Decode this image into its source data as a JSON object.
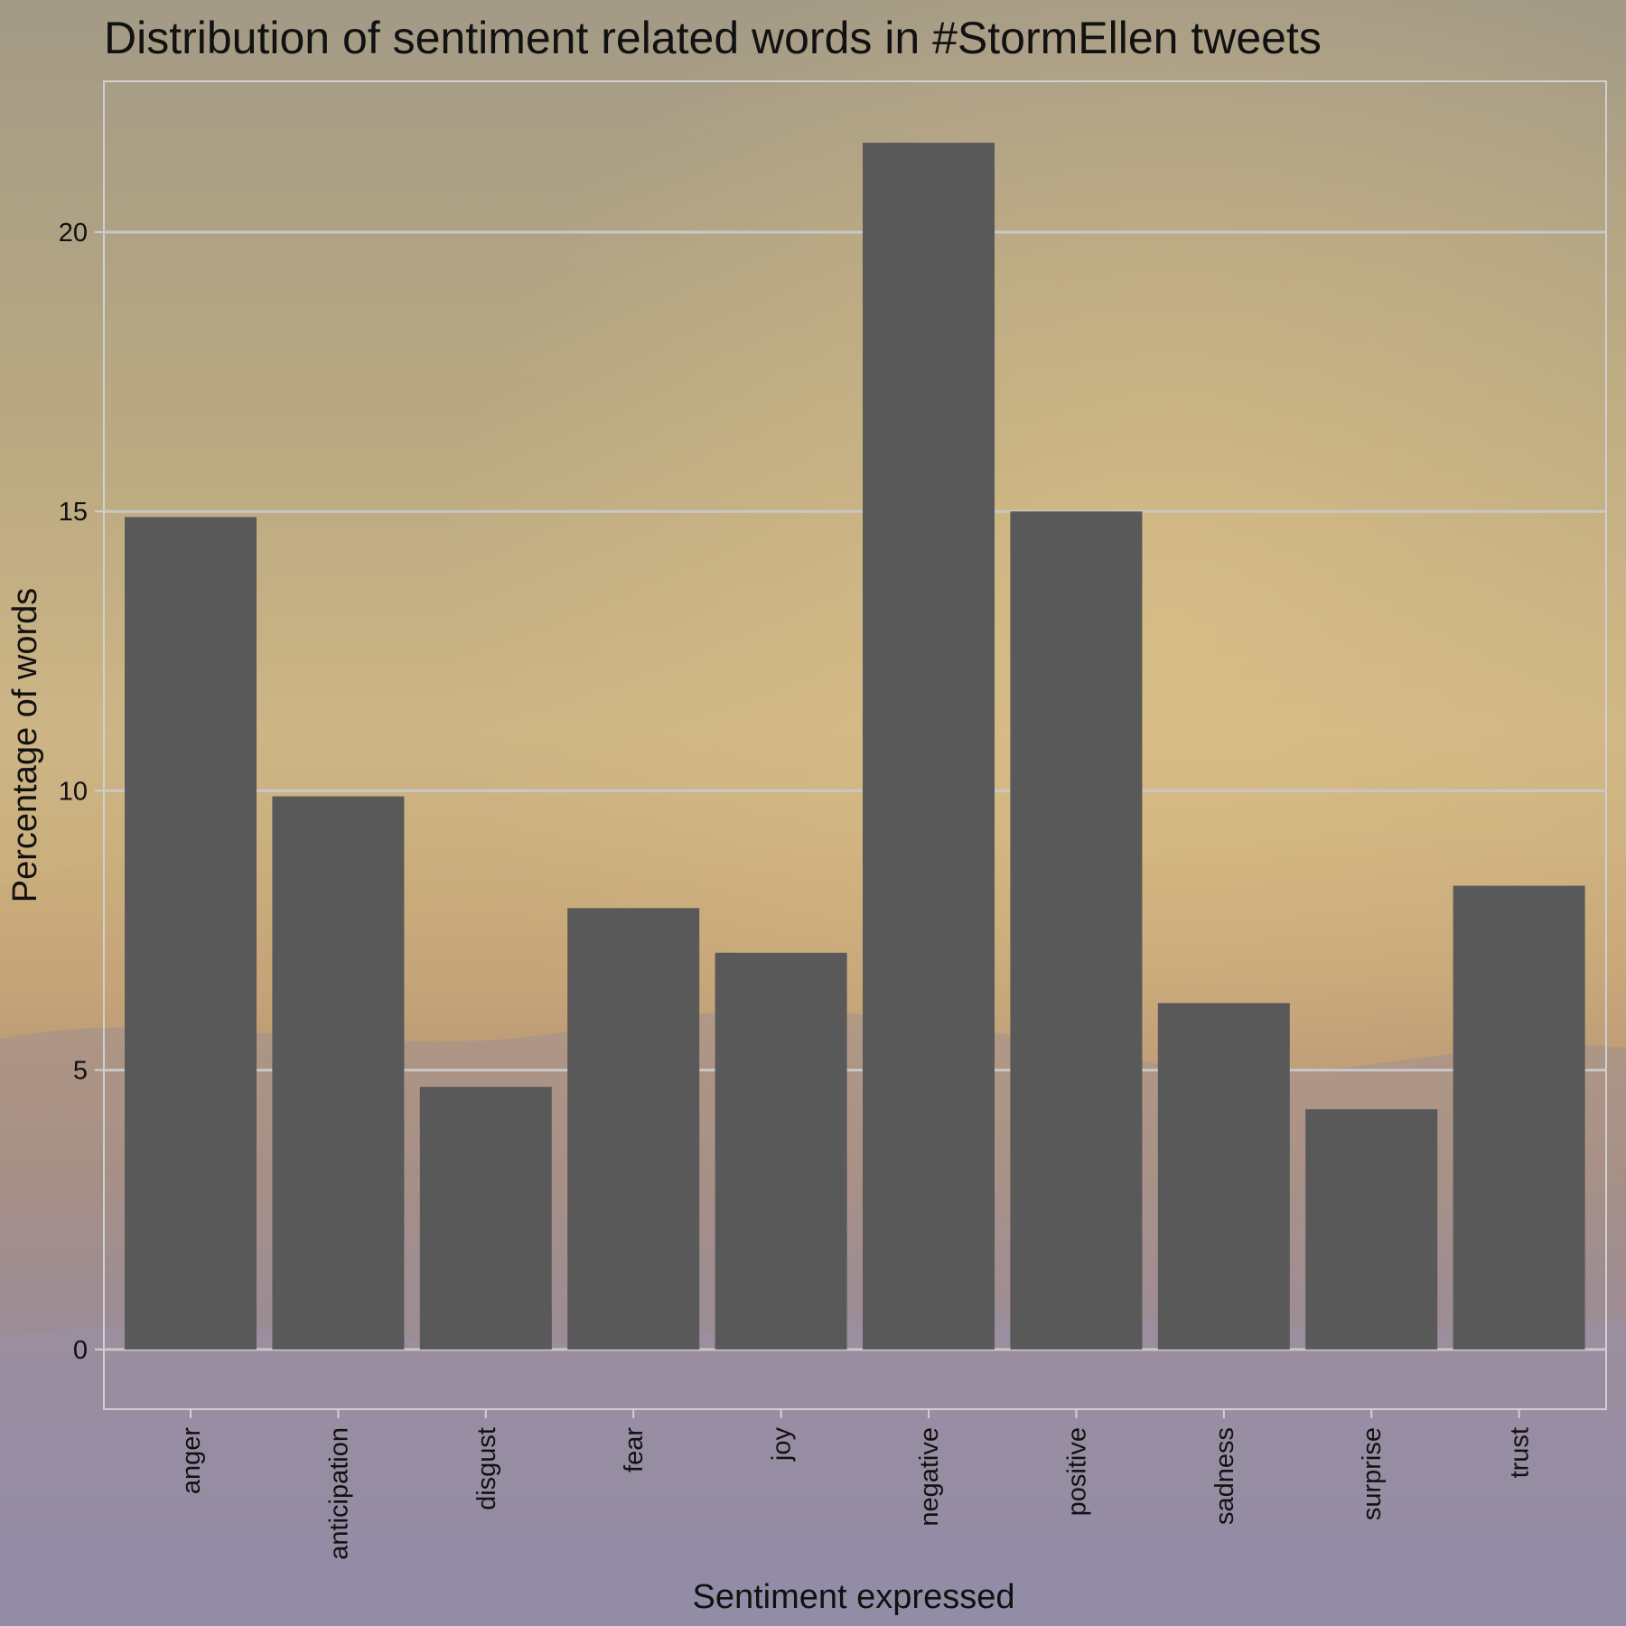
{
  "chart_data": {
    "type": "bar",
    "title": "Distribution of sentiment related words in #StormEllen tweets",
    "xlabel": "Sentiment expressed",
    "ylabel": "Percentage of words",
    "categories": [
      "anger",
      "anticipation",
      "disgust",
      "fear",
      "joy",
      "negative",
      "positive",
      "sadness",
      "surprise",
      "trust"
    ],
    "values": [
      14.9,
      9.9,
      4.7,
      7.9,
      7.1,
      21.6,
      15.0,
      6.2,
      4.3,
      8.3
    ],
    "y_ticks": [
      0,
      5,
      10,
      15,
      20
    ],
    "ylim": [
      -1.07,
      22.7
    ],
    "grid": "horizontal",
    "bar_color": "#595959",
    "grid_color": "#c8c8c8",
    "panel_border_color": "#d0d0d0"
  }
}
